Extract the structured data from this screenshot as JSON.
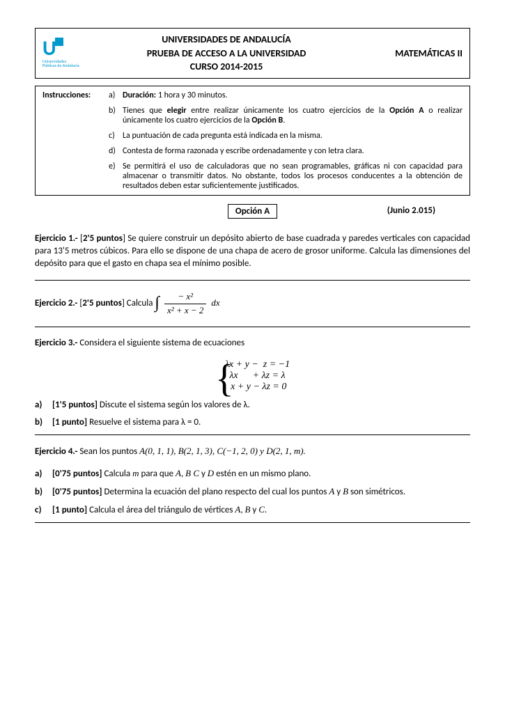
{
  "header": {
    "line1": "UNIVERSIDADES DE ANDALUCÍA",
    "line2": "PRUEBA DE ACCESO A LA UNIVERSIDAD",
    "line3": "CURSO 2014-2015",
    "subject": "MATEMÁTICAS II",
    "logo_text": "U",
    "logo_sub": "Universidades Públicas de Andalucía"
  },
  "instructions": {
    "label": "Instrucciones:",
    "items": [
      {
        "letter": "a)",
        "html": "<b>Duración:</b> 1 hora y 30 minutos."
      },
      {
        "letter": "b)",
        "html": "Tienes que <b>elegir</b> entre realizar únicamente los cuatro ejercicios de la <b>Opción A</b> o realizar únicamente los cuatro ejercicios de la <b>Opción B</b>."
      },
      {
        "letter": "c)",
        "html": "La puntuación de cada pregunta está indicada en la misma."
      },
      {
        "letter": "d)",
        "html": "Contesta de forma razonada y escribe ordenadamente y con letra clara."
      },
      {
        "letter": "e)",
        "html": "Se permitirá el uso de calculadoras que no sean programables, gráficas ni con capacidad para almacenar o transmitir datos. No obstante, todos los procesos conducentes a la obtención de resultados deben estar suficientemente justificados."
      }
    ]
  },
  "option": {
    "label": "Opción A",
    "date": "(Junio 2.015)"
  },
  "ex1": {
    "prefix": "Ejercicio 1.-",
    "points": "[2'5 puntos]",
    "text": "Se quiere construir un depósito abierto de base cuadrada y paredes verticales con capacidad para 13'5 metros cúbicos. Para ello se dispone de una chapa de acero de grosor uniforme. Calcula las dimensiones del depósito para que el gasto en chapa sea el mínimo posible."
  },
  "ex2": {
    "prefix": "Ejercicio 2.-",
    "points": "[2'5 puntos]",
    "text": "Calcula",
    "frac_num": "− x²",
    "frac_den": "x² + x − 2",
    "dx": "dx"
  },
  "ex3": {
    "prefix": "Ejercicio 3.-",
    "text": "Considera el siguiente sistema de ecuaciones",
    "eq1": "λx + y −  z = −1",
    "eq2": "λx      + λz = λ",
    "eq3": " x + y − λz = 0",
    "a": {
      "letter": "a)",
      "points": "[1'5 puntos]",
      "text": "Discute el sistema según los valores de  λ."
    },
    "b": {
      "letter": "b)",
      "points": "[1 punto]",
      "text": "Resuelve el sistema para  λ = 0."
    }
  },
  "ex4": {
    "prefix": "Ejercicio 4.-",
    "intro": "Sean los puntos",
    "points_list": "A(0, 1, 1),  B(2, 1, 3),  C(−1, 2, 0)  y  D(2, 1, m).",
    "a": {
      "letter": "a)",
      "points": "[0'75 puntos]",
      "text_before": "Calcula",
      "var": "m",
      "text_after": "para que  A, B C  y  D  estén en un mismo plano."
    },
    "b": {
      "letter": "b)",
      "points": "[0'75 puntos]",
      "text": "Determina la ecuación del plano respecto del cual los puntos  A  y  B  son simétricos."
    },
    "c": {
      "letter": "c)",
      "points": "[1 punto]",
      "text": "Calcula el área del triángulo de vértices  A, B  y  C."
    }
  }
}
